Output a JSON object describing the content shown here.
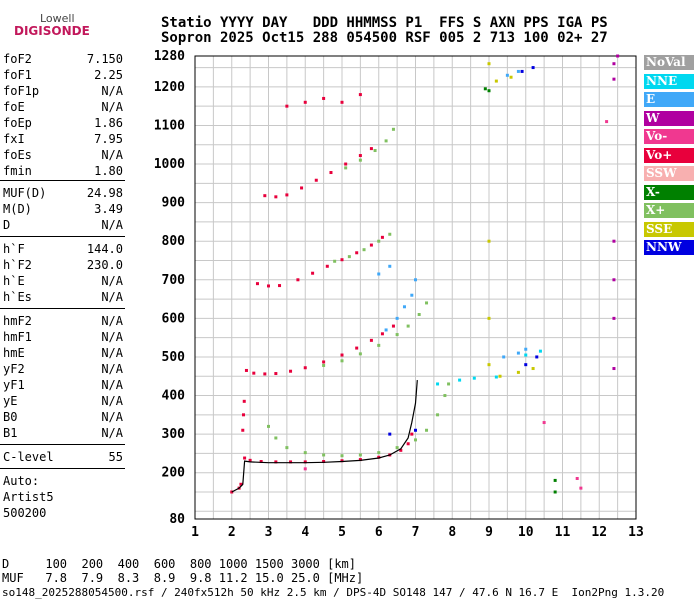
{
  "logo": {
    "top": "Lowell",
    "bottom": "DIGISONDE"
  },
  "header": {
    "line1": "Statio YYYY DAY   DDD HHMMSS P1  FFS S AXN PPS IGA PS",
    "line2": "Sopron 2025 Oct15 288 054500 RSF 005 2 713 100 02+ 27"
  },
  "params_group1": [
    {
      "label": "foF2",
      "value": "7.150"
    },
    {
      "label": "foF1",
      "value": "2.25"
    },
    {
      "label": "foF1p",
      "value": "N/A"
    },
    {
      "label": "foE",
      "value": "N/A"
    },
    {
      "label": "foEp",
      "value": "1.86"
    },
    {
      "label": "fxI",
      "value": "7.95"
    },
    {
      "label": "foEs",
      "value": "N/A"
    },
    {
      "label": "fmin",
      "value": "1.80"
    }
  ],
  "params_group2": [
    {
      "label": "MUF(D)",
      "value": "24.98"
    },
    {
      "label": "M(D)",
      "value": "3.49"
    },
    {
      "label": "D",
      "value": "N/A"
    }
  ],
  "params_group3": [
    {
      "label": "h`F",
      "value": "144.0"
    },
    {
      "label": "h`F2",
      "value": "230.0"
    },
    {
      "label": "h`E",
      "value": "N/A"
    },
    {
      "label": "h`Es",
      "value": "N/A"
    }
  ],
  "params_group4": [
    {
      "label": "hmF2",
      "value": "N/A"
    },
    {
      "label": "hmF1",
      "value": "N/A"
    },
    {
      "label": "hmE",
      "value": "N/A"
    },
    {
      "label": "yF2",
      "value": "N/A"
    },
    {
      "label": "yF1",
      "value": "N/A"
    },
    {
      "label": "yE",
      "value": "N/A"
    },
    {
      "label": "B0",
      "value": "N/A"
    },
    {
      "label": "B1",
      "value": "N/A"
    }
  ],
  "clevel": {
    "label": "C-level",
    "value": "55"
  },
  "auto": {
    "line1": "Auto:",
    "line2": "Artist5",
    "line3": "500200"
  },
  "legend": [
    {
      "label": "NoVal",
      "color": "#a0a0a0"
    },
    {
      "label": "NNE",
      "color": "#00d8f0"
    },
    {
      "label": "E",
      "color": "#40a8f8"
    },
    {
      "label": "W",
      "color": "#b000a0"
    },
    {
      "label": "Vo-",
      "color": "#f03890"
    },
    {
      "label": "Vo+",
      "color": "#e8003c"
    },
    {
      "label": "SSW",
      "color": "#f8b0b0"
    },
    {
      "label": "X-",
      "color": "#008000"
    },
    {
      "label": "X+",
      "color": "#80c060"
    },
    {
      "label": "SSE",
      "color": "#c8c800"
    },
    {
      "label": "NNW",
      "color": "#0000e0"
    }
  ],
  "bottom": {
    "row_d": "D     100  200  400  600  800 1000 1500 3000 [km]",
    "row_muf": "MUF   7.8  7.9  8.3  8.9  9.8 11.2 15.0 25.0 [MHz]",
    "footer": "so148_2025288054500.rsf / 240fx512h 50 kHz 2.5 km / DPS-4D SO148 147 / 47.6 N 16.7 E  Ion2Png 1.3.20"
  },
  "chart_data": {
    "type": "scatter",
    "xlim": [
      1,
      13
    ],
    "ylim": [
      80,
      1280
    ],
    "x_ticks": [
      1,
      2,
      3,
      4,
      5,
      6,
      7,
      8,
      9,
      10,
      11,
      12,
      13
    ],
    "y_ticks": [
      80,
      200,
      300,
      400,
      500,
      600,
      700,
      800,
      900,
      1000,
      1100,
      1200,
      1280
    ],
    "grid": true,
    "series": [
      {
        "color": "#e8003c",
        "points": [
          [
            2.35,
            238
          ],
          [
            2.5,
            232
          ],
          [
            2.8,
            229
          ],
          [
            3.2,
            228
          ],
          [
            3.6,
            228
          ],
          [
            4.0,
            228
          ],
          [
            4.5,
            229
          ],
          [
            5.0,
            231
          ],
          [
            5.5,
            234
          ],
          [
            6.0,
            240
          ],
          [
            6.3,
            246
          ],
          [
            6.6,
            258
          ],
          [
            6.8,
            275
          ],
          [
            6.9,
            300
          ]
        ]
      },
      {
        "color": "#e8003c",
        "points": [
          [
            2.4,
            465
          ],
          [
            2.6,
            458
          ],
          [
            2.9,
            456
          ],
          [
            3.2,
            457
          ],
          [
            3.6,
            463
          ],
          [
            4.0,
            472
          ],
          [
            4.5,
            487
          ],
          [
            5.0,
            505
          ],
          [
            5.4,
            523
          ],
          [
            5.8,
            543
          ],
          [
            6.1,
            560
          ],
          [
            6.4,
            580
          ]
        ]
      },
      {
        "color": "#e8003c",
        "points": [
          [
            2.7,
            690
          ],
          [
            3.0,
            684
          ],
          [
            3.3,
            685
          ],
          [
            3.8,
            700
          ],
          [
            4.2,
            717
          ],
          [
            4.6,
            735
          ],
          [
            5.0,
            752
          ],
          [
            5.4,
            770
          ],
          [
            5.8,
            790
          ],
          [
            6.1,
            810
          ]
        ]
      },
      {
        "color": "#e8003c",
        "points": [
          [
            2.9,
            918
          ],
          [
            3.2,
            915
          ],
          [
            3.5,
            920
          ],
          [
            3.9,
            938
          ],
          [
            4.3,
            958
          ],
          [
            4.7,
            978
          ],
          [
            5.1,
            1000
          ],
          [
            5.5,
            1022
          ],
          [
            5.8,
            1040
          ]
        ]
      },
      {
        "color": "#e8003c",
        "points": [
          [
            2.3,
            310
          ],
          [
            2.32,
            350
          ],
          [
            2.34,
            385
          ],
          [
            2.0,
            150
          ],
          [
            2.2,
            160
          ],
          [
            2.25,
            170
          ]
        ]
      },
      {
        "color": "#e8003c",
        "points": [
          [
            3.5,
            1150
          ],
          [
            4.0,
            1160
          ],
          [
            4.5,
            1170
          ],
          [
            5.0,
            1160
          ],
          [
            5.5,
            1180
          ]
        ]
      },
      {
        "color": "#80c060",
        "points": [
          [
            3.0,
            320
          ],
          [
            3.2,
            290
          ],
          [
            3.5,
            265
          ],
          [
            4.0,
            252
          ],
          [
            4.5,
            246
          ],
          [
            5.0,
            244
          ],
          [
            5.5,
            246
          ],
          [
            6.0,
            252
          ],
          [
            6.5,
            265
          ],
          [
            7.0,
            285
          ],
          [
            7.3,
            310
          ],
          [
            7.6,
            350
          ],
          [
            7.8,
            400
          ],
          [
            7.9,
            430
          ]
        ]
      },
      {
        "color": "#80c060",
        "points": [
          [
            4.5,
            478
          ],
          [
            5.0,
            490
          ],
          [
            5.5,
            508
          ],
          [
            6.0,
            530
          ],
          [
            6.5,
            558
          ],
          [
            6.8,
            580
          ],
          [
            7.1,
            610
          ],
          [
            7.3,
            640
          ]
        ]
      },
      {
        "color": "#80c060",
        "points": [
          [
            4.8,
            748
          ],
          [
            5.2,
            760
          ],
          [
            5.6,
            778
          ],
          [
            6.0,
            800
          ],
          [
            6.3,
            818
          ]
        ]
      },
      {
        "color": "#80c060",
        "points": [
          [
            5.1,
            990
          ],
          [
            5.5,
            1010
          ],
          [
            5.9,
            1035
          ],
          [
            6.2,
            1060
          ],
          [
            6.4,
            1090
          ]
        ]
      },
      {
        "color": "#40a8f8",
        "points": [
          [
            6.2,
            570
          ],
          [
            6.5,
            600
          ],
          [
            6.7,
            630
          ],
          [
            6.9,
            660
          ],
          [
            7.0,
            700
          ],
          [
            6.0,
            715
          ],
          [
            6.3,
            735
          ]
        ]
      },
      {
        "color": "#40a8f8",
        "points": [
          [
            9.4,
            500
          ],
          [
            9.8,
            510
          ],
          [
            10.0,
            520
          ],
          [
            9.5,
            1230
          ],
          [
            9.8,
            1240
          ]
        ]
      },
      {
        "color": "#c8c800",
        "points": [
          [
            9.0,
            480
          ],
          [
            9.0,
            600
          ],
          [
            9.0,
            800
          ],
          [
            9.0,
            1260
          ],
          [
            9.3,
            450
          ],
          [
            9.8,
            460
          ],
          [
            10.2,
            470
          ],
          [
            9.2,
            1215
          ],
          [
            9.6,
            1225
          ]
        ]
      },
      {
        "color": "#b000a0",
        "points": [
          [
            12.4,
            470
          ],
          [
            12.4,
            600
          ],
          [
            12.4,
            700
          ],
          [
            12.4,
            800
          ],
          [
            12.4,
            1220
          ],
          [
            12.4,
            1260
          ],
          [
            12.5,
            1280
          ]
        ]
      },
      {
        "color": "#0000e0",
        "points": [
          [
            10.0,
            480
          ],
          [
            10.3,
            500
          ],
          [
            9.9,
            1240
          ],
          [
            10.2,
            1250
          ],
          [
            6.3,
            300
          ],
          [
            7.0,
            310
          ]
        ]
      },
      {
        "color": "#00d8f0",
        "points": [
          [
            7.6,
            430
          ],
          [
            8.2,
            440
          ],
          [
            8.6,
            445
          ],
          [
            9.2,
            448
          ],
          [
            10.0,
            505
          ],
          [
            10.4,
            515
          ]
        ]
      },
      {
        "color": "#008000",
        "points": [
          [
            8.9,
            1195
          ],
          [
            9.0,
            1190
          ],
          [
            10.8,
            180
          ],
          [
            10.8,
            150
          ]
        ]
      },
      {
        "color": "#f03890",
        "points": [
          [
            4.0,
            210
          ],
          [
            10.5,
            330
          ],
          [
            11.4,
            185
          ],
          [
            11.5,
            160
          ],
          [
            12.2,
            1110
          ]
        ]
      }
    ],
    "fit_line": {
      "color": "#000000",
      "points": [
        [
          2.0,
          150
        ],
        [
          2.2,
          160
        ],
        [
          2.3,
          170
        ],
        [
          2.35,
          230
        ],
        [
          2.5,
          228
        ],
        [
          3.0,
          226
        ],
        [
          3.5,
          226
        ],
        [
          4.0,
          226
        ],
        [
          4.5,
          227
        ],
        [
          5.0,
          229
        ],
        [
          5.5,
          232
        ],
        [
          6.0,
          238
        ],
        [
          6.3,
          246
        ],
        [
          6.6,
          262
        ],
        [
          6.8,
          290
        ],
        [
          6.9,
          330
        ],
        [
          7.0,
          380
        ],
        [
          7.05,
          440
        ]
      ]
    }
  }
}
